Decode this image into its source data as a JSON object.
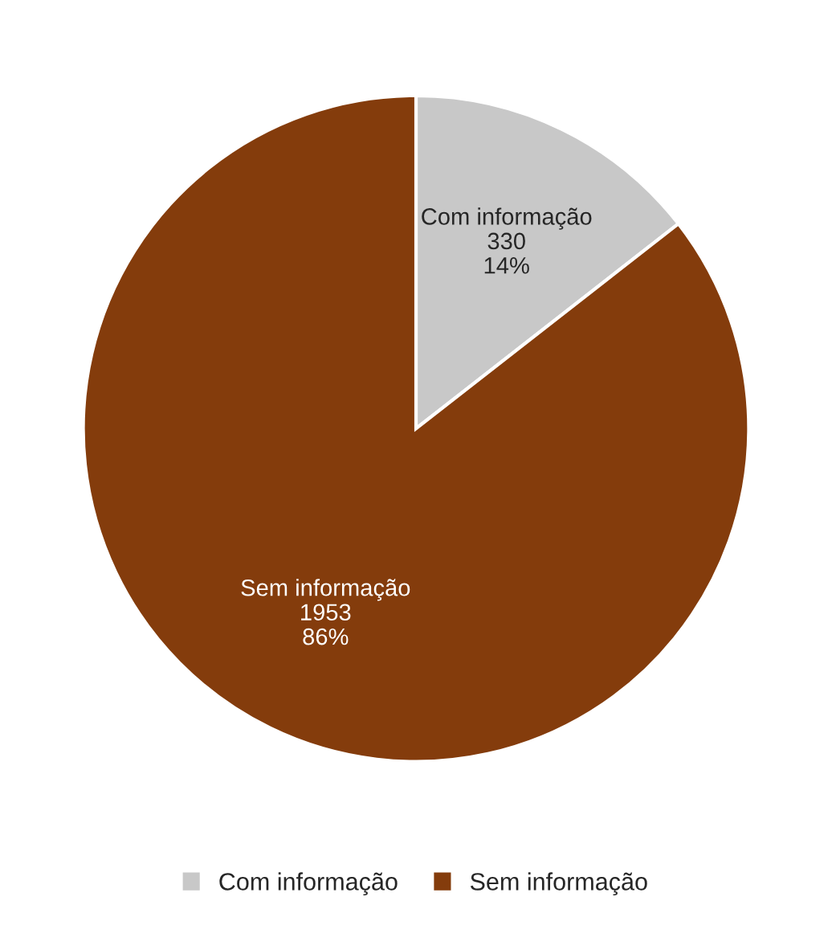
{
  "chart_data": {
    "type": "pie",
    "categories": [
      "Com informação",
      "Sem informação"
    ],
    "values": [
      330,
      1953
    ],
    "colors": [
      "#c8c8c8",
      "#843c0c"
    ],
    "value_labels": [
      "330\n14%",
      "1953\n86%"
    ],
    "legend": "bottom"
  }
}
